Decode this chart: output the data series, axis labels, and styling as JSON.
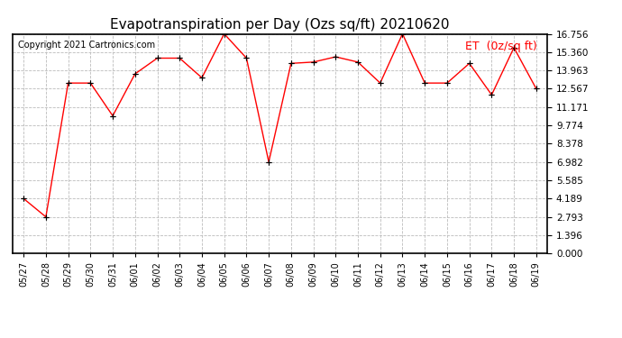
{
  "title": "Evapotranspiration per Day (Ozs sq/ft) 20210620",
  "copyright": "Copyright 2021 Cartronics.com",
  "legend_label": "ET  (0z/sq ft)",
  "dates": [
    "05/27",
    "05/28",
    "05/29",
    "05/30",
    "05/31",
    "06/01",
    "06/02",
    "06/03",
    "06/04",
    "06/05",
    "06/06",
    "06/07",
    "06/08",
    "06/09",
    "06/10",
    "06/11",
    "06/12",
    "06/13",
    "06/14",
    "06/15",
    "06/16",
    "06/17",
    "06/18",
    "06/19"
  ],
  "et_values": [
    4.189,
    2.793,
    13.0,
    13.0,
    10.5,
    13.7,
    14.9,
    14.9,
    13.4,
    16.756,
    14.9,
    6.982,
    14.5,
    14.6,
    15.0,
    14.6,
    13.0,
    16.756,
    13.0,
    13.0,
    14.5,
    12.1,
    15.7,
    12.567
  ],
  "line_color": "red",
  "marker_color": "black",
  "marker_style": "+",
  "ylim": [
    0,
    16.756
  ],
  "yticks": [
    0.0,
    1.396,
    2.793,
    4.189,
    5.585,
    6.982,
    8.378,
    9.774,
    11.171,
    12.567,
    13.963,
    15.36,
    16.756
  ],
  "background_color": "#ffffff",
  "grid_color": "#bbbbbb",
  "title_fontsize": 11,
  "legend_color": "red",
  "copyright_color": "black",
  "copyright_fontsize": 7,
  "border_color": "black"
}
